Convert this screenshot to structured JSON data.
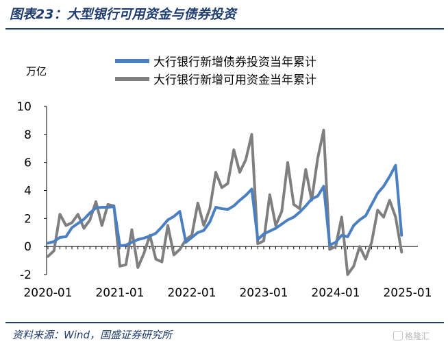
{
  "header": {
    "title": "图表23：大型银行可用资金与债券投资"
  },
  "footer": {
    "source": "资料来源：Wind，国盛证券研究所",
    "watermark": "格隆汇"
  },
  "chart_data": {
    "type": "line",
    "title": "",
    "ylabel": "万亿",
    "xlabel": "",
    "ylim": [
      -2,
      10
    ],
    "yticks": [
      -2,
      0,
      2,
      4,
      6,
      8,
      10
    ],
    "xtick_labels": [
      "2020-01",
      "2021-01",
      "2022-01",
      "2023-01",
      "2024-01",
      "2025-01"
    ],
    "x_start": "2020-01",
    "legend_position": "top",
    "grid": false,
    "series": [
      {
        "name": "大行银行新增债券投资当年累计",
        "color": "#4a7fc1",
        "values": [
          0.25,
          0.35,
          0.65,
          0.7,
          1.35,
          1.65,
          1.95,
          2.4,
          2.75,
          2.8,
          2.8,
          2.85,
          0.05,
          0.1,
          0.3,
          0.5,
          0.6,
          0.75,
          0.95,
          1.4,
          1.9,
          2.15,
          2.5,
          0.3,
          0.65,
          1.0,
          1.15,
          1.75,
          2.8,
          2.7,
          2.65,
          2.9,
          3.3,
          3.65,
          4.1,
          0.5,
          0.9,
          1.1,
          1.3,
          1.6,
          1.9,
          2.1,
          2.45,
          2.9,
          3.4,
          3.6,
          4.3,
          0.1,
          0.3,
          0.8,
          0.7,
          1.5,
          1.9,
          2.2,
          3.0,
          3.8,
          4.3,
          5.0,
          5.8,
          0.8
        ]
      },
      {
        "name": "大行银行新增可用资金当年累计",
        "color": "#7f7f7f",
        "values": [
          -0.7,
          -0.3,
          2.3,
          1.5,
          1.7,
          2.3,
          1.3,
          1.9,
          3.2,
          1.5,
          3.0,
          2.9,
          -1.4,
          -1.3,
          1.2,
          -1.5,
          -0.5,
          0.8,
          -0.9,
          -1.1,
          1.5,
          -0.6,
          -0.2,
          0.5,
          0.8,
          3.1,
          1.5,
          2.7,
          5.3,
          4.2,
          4.5,
          6.9,
          5.3,
          6.2,
          8.0,
          0.2,
          0.4,
          3.7,
          1.5,
          2.5,
          6.0,
          3.0,
          2.7,
          5.5,
          3.3,
          6.3,
          8.3,
          -0.2,
          0.0,
          2.1,
          -2.0,
          -1.4,
          0.0,
          -0.9,
          0.3,
          2.6,
          2.1,
          3.3,
          2.1,
          -0.4
        ]
      }
    ]
  }
}
